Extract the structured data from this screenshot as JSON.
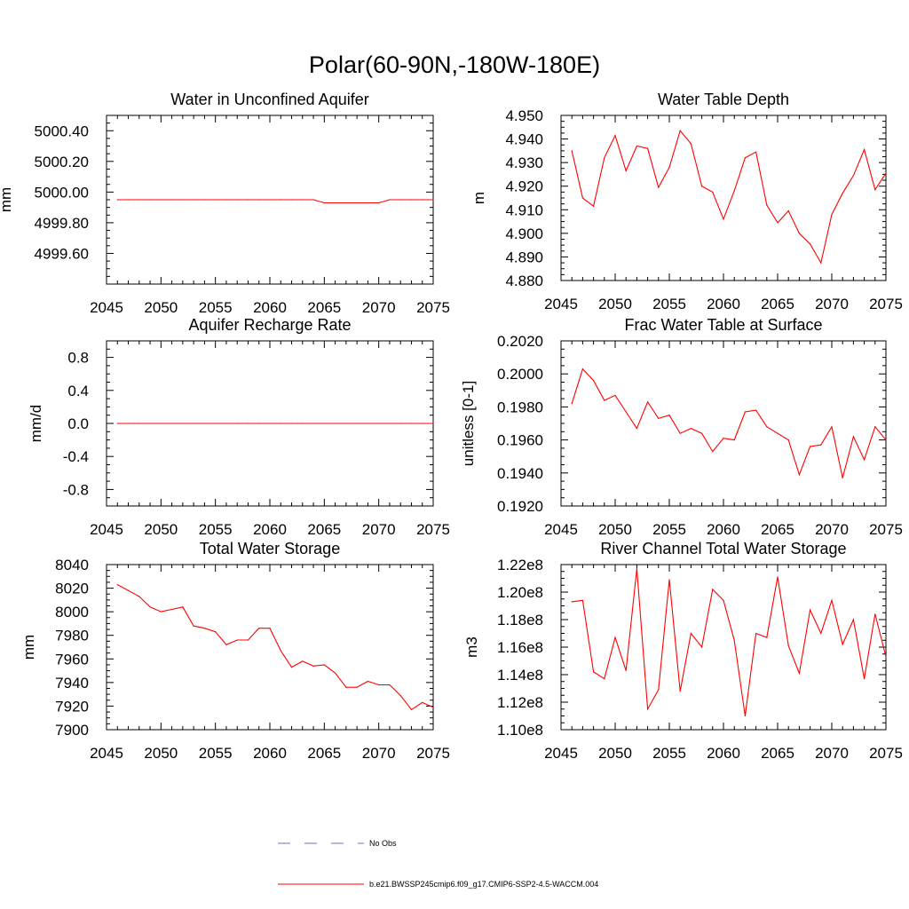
{
  "figure": {
    "title": "Polar(60-90N,-180W-180E)"
  },
  "legend": {
    "obs_label": "No Obs",
    "obs_color": "#6b6bc8",
    "model_label": "b.e21.BWSSP245cmip6.f09_g17.CMIP6-SSP2-4.5-WACCM.004",
    "model_color": "#ff0000"
  },
  "chart_data": [
    {
      "type": "line",
      "title": "Water in Unconfined Aquifer",
      "ylabel": "mm",
      "xlabel": "",
      "xlim": [
        2045,
        2075
      ],
      "ylim": [
        4999.4,
        5000.5
      ],
      "xticks": [
        2045,
        2050,
        2055,
        2060,
        2065,
        2070,
        2075
      ],
      "xtick_labels": [
        "2045",
        "2050",
        "2055",
        "2060",
        "2065",
        "2070",
        "2075"
      ],
      "yticks": [
        4999.6,
        4999.8,
        5000.0,
        5000.2,
        5000.4
      ],
      "ytick_labels": [
        "4999.60",
        "4999.80",
        "5000.00",
        "5000.20",
        "5000.40"
      ],
      "x": [
        2046,
        2047,
        2048,
        2049,
        2050,
        2051,
        2052,
        2053,
        2054,
        2055,
        2056,
        2057,
        2058,
        2059,
        2060,
        2061,
        2062,
        2063,
        2064,
        2065,
        2066,
        2067,
        2068,
        2069,
        2070,
        2071,
        2072,
        2073,
        2074,
        2075
      ],
      "series": [
        {
          "color": "#ff0000",
          "values": [
            4999.95,
            4999.95,
            4999.95,
            4999.95,
            4999.95,
            4999.95,
            4999.95,
            4999.95,
            4999.95,
            4999.95,
            4999.95,
            4999.95,
            4999.95,
            4999.95,
            4999.95,
            4999.95,
            4999.95,
            4999.95,
            4999.95,
            4999.93,
            4999.93,
            4999.93,
            4999.93,
            4999.93,
            4999.93,
            4999.95,
            4999.95,
            4999.95,
            4999.95,
            4999.95
          ]
        }
      ]
    },
    {
      "type": "line",
      "title": "Water Table Depth",
      "ylabel": "m",
      "xlabel": "",
      "xlim": [
        2045,
        2075
      ],
      "ylim": [
        4.88,
        4.95
      ],
      "xticks": [
        2045,
        2050,
        2055,
        2060,
        2065,
        2070,
        2075
      ],
      "xtick_labels": [
        "2045",
        "2050",
        "2055",
        "2060",
        "2065",
        "2070",
        "2075"
      ],
      "yticks": [
        4.88,
        4.89,
        4.9,
        4.91,
        4.92,
        4.93,
        4.94,
        4.95
      ],
      "ytick_labels": [
        "4.880",
        "4.890",
        "4.900",
        "4.910",
        "4.920",
        "4.930",
        "4.940",
        "4.950"
      ],
      "x": [
        2046,
        2047,
        2048,
        2049,
        2050,
        2051,
        2052,
        2053,
        2054,
        2055,
        2056,
        2057,
        2058,
        2059,
        2060,
        2061,
        2062,
        2063,
        2064,
        2065,
        2066,
        2067,
        2068,
        2069,
        2070,
        2071,
        2072,
        2073,
        2074,
        2075
      ],
      "series": [
        {
          "color": "#ff0000",
          "values": [
            4.935,
            4.915,
            4.9115,
            4.932,
            4.9415,
            4.9265,
            4.937,
            4.936,
            4.9195,
            4.928,
            4.9435,
            4.938,
            4.92,
            4.9175,
            4.906,
            4.918,
            4.932,
            4.9345,
            4.912,
            4.9045,
            4.9095,
            4.9,
            4.8955,
            4.8875,
            4.908,
            4.917,
            4.9245,
            4.9355,
            4.9185,
            4.9255
          ]
        }
      ]
    },
    {
      "type": "line",
      "title": "Aquifer Recharge Rate",
      "ylabel": "mm/d",
      "xlabel": "",
      "xlim": [
        2045,
        2075
      ],
      "ylim": [
        -1.0,
        1.0
      ],
      "xticks": [
        2045,
        2050,
        2055,
        2060,
        2065,
        2070,
        2075
      ],
      "xtick_labels": [
        "2045",
        "2050",
        "2055",
        "2060",
        "2065",
        "2070",
        "2075"
      ],
      "yticks": [
        -0.8,
        -0.4,
        0.0,
        0.4,
        0.8
      ],
      "ytick_labels": [
        "-0.8",
        "-0.4",
        "0.0",
        "0.4",
        "0.8"
      ],
      "x": [
        2046,
        2047,
        2048,
        2049,
        2050,
        2051,
        2052,
        2053,
        2054,
        2055,
        2056,
        2057,
        2058,
        2059,
        2060,
        2061,
        2062,
        2063,
        2064,
        2065,
        2066,
        2067,
        2068,
        2069,
        2070,
        2071,
        2072,
        2073,
        2074,
        2075
      ],
      "series": [
        {
          "color": "#ff0000",
          "values": [
            0,
            0,
            0,
            0,
            0,
            0,
            0,
            0,
            0,
            0,
            0,
            0,
            0,
            0,
            0,
            0,
            0,
            0,
            0,
            0,
            0,
            0,
            0,
            0,
            0,
            0,
            0,
            0,
            0,
            0
          ]
        }
      ]
    },
    {
      "type": "line",
      "title": "Frac Water Table at Surface",
      "ylabel": "unitless [0-1]",
      "xlabel": "",
      "xlim": [
        2045,
        2075
      ],
      "ylim": [
        0.192,
        0.202
      ],
      "xticks": [
        2045,
        2050,
        2055,
        2060,
        2065,
        2070,
        2075
      ],
      "xtick_labels": [
        "2045",
        "2050",
        "2055",
        "2060",
        "2065",
        "2070",
        "2075"
      ],
      "yticks": [
        0.192,
        0.194,
        0.196,
        0.198,
        0.2,
        0.202
      ],
      "ytick_labels": [
        "0.1920",
        "0.1940",
        "0.1960",
        "0.1980",
        "0.2000",
        "0.2020"
      ],
      "x": [
        2046,
        2047,
        2048,
        2049,
        2050,
        2051,
        2052,
        2053,
        2054,
        2055,
        2056,
        2057,
        2058,
        2059,
        2060,
        2061,
        2062,
        2063,
        2064,
        2065,
        2066,
        2067,
        2068,
        2069,
        2070,
        2071,
        2072,
        2073,
        2074,
        2075
      ],
      "series": [
        {
          "color": "#ff0000",
          "values": [
            0.1982,
            0.2003,
            0.1996,
            0.1984,
            0.1987,
            0.1977,
            0.1967,
            0.1983,
            0.1973,
            0.1975,
            0.1964,
            0.1967,
            0.1964,
            0.1953,
            0.1961,
            0.196,
            0.1977,
            0.1978,
            0.1968,
            0.1964,
            0.196,
            0.1939,
            0.1956,
            0.1957,
            0.1968,
            0.1937,
            0.1962,
            0.1948,
            0.1968,
            0.196
          ]
        }
      ]
    },
    {
      "type": "line",
      "title": "Total Water Storage",
      "ylabel": "mm",
      "xlabel": "",
      "xlim": [
        2045,
        2075
      ],
      "ylim": [
        7900,
        8040
      ],
      "xticks": [
        2045,
        2050,
        2055,
        2060,
        2065,
        2070,
        2075
      ],
      "xtick_labels": [
        "2045",
        "2050",
        "2055",
        "2060",
        "2065",
        "2070",
        "2075"
      ],
      "yticks": [
        7900,
        7920,
        7940,
        7960,
        7980,
        8000,
        8020,
        8040
      ],
      "ytick_labels": [
        "7900",
        "7920",
        "7940",
        "7960",
        "7980",
        "8000",
        "8020",
        "8040"
      ],
      "x": [
        2046,
        2047,
        2048,
        2049,
        2050,
        2051,
        2052,
        2053,
        2054,
        2055,
        2056,
        2057,
        2058,
        2059,
        2060,
        2061,
        2062,
        2063,
        2064,
        2065,
        2066,
        2067,
        2068,
        2069,
        2070,
        2071,
        2072,
        2073,
        2074,
        2075
      ],
      "series": [
        {
          "color": "#ff0000",
          "values": [
            8023,
            8018,
            8013,
            8004,
            8000,
            8002,
            8004,
            7988,
            7986,
            7983,
            7972,
            7976,
            7976,
            7986,
            7986,
            7967,
            7953,
            7958,
            7954,
            7955,
            7948,
            7936,
            7936,
            7941,
            7938,
            7938,
            7929,
            7917,
            7923,
            7919
          ]
        }
      ]
    },
    {
      "type": "line",
      "title": "River Channel Total Water Storage",
      "ylabel": "m3",
      "xlabel": "",
      "xlim": [
        2045,
        2075
      ],
      "ylim": [
        110000000.0,
        122000000.0
      ],
      "xticks": [
        2045,
        2050,
        2055,
        2060,
        2065,
        2070,
        2075
      ],
      "xtick_labels": [
        "2045",
        "2050",
        "2055",
        "2060",
        "2065",
        "2070",
        "2075"
      ],
      "yticks": [
        110000000.0,
        112000000.0,
        114000000.0,
        116000000.0,
        118000000.0,
        120000000.0,
        122000000.0
      ],
      "ytick_labels": [
        "1.10e8",
        "1.12e8",
        "1.14e8",
        "1.16e8",
        "1.18e8",
        "1.20e8",
        "1.22e8"
      ],
      "x": [
        2046,
        2047,
        2048,
        2049,
        2050,
        2051,
        2052,
        2053,
        2054,
        2055,
        2056,
        2057,
        2058,
        2059,
        2060,
        2061,
        2062,
        2063,
        2064,
        2065,
        2066,
        2067,
        2068,
        2069,
        2070,
        2071,
        2072,
        2073,
        2074,
        2075
      ],
      "series": [
        {
          "color": "#ff0000",
          "values": [
            119300000,
            119400000,
            114200000,
            113700000,
            116700000,
            114300000,
            121700000,
            111500000,
            112900000,
            120900000,
            112800000,
            117000000,
            116000000,
            120200000,
            119400000,
            116500000,
            111000000,
            117000000,
            116700000,
            121100000,
            116100000,
            114100000,
            118700000,
            117000000,
            119400000,
            116200000,
            118000000,
            113700000,
            118400000,
            115300000
          ]
        }
      ]
    }
  ]
}
